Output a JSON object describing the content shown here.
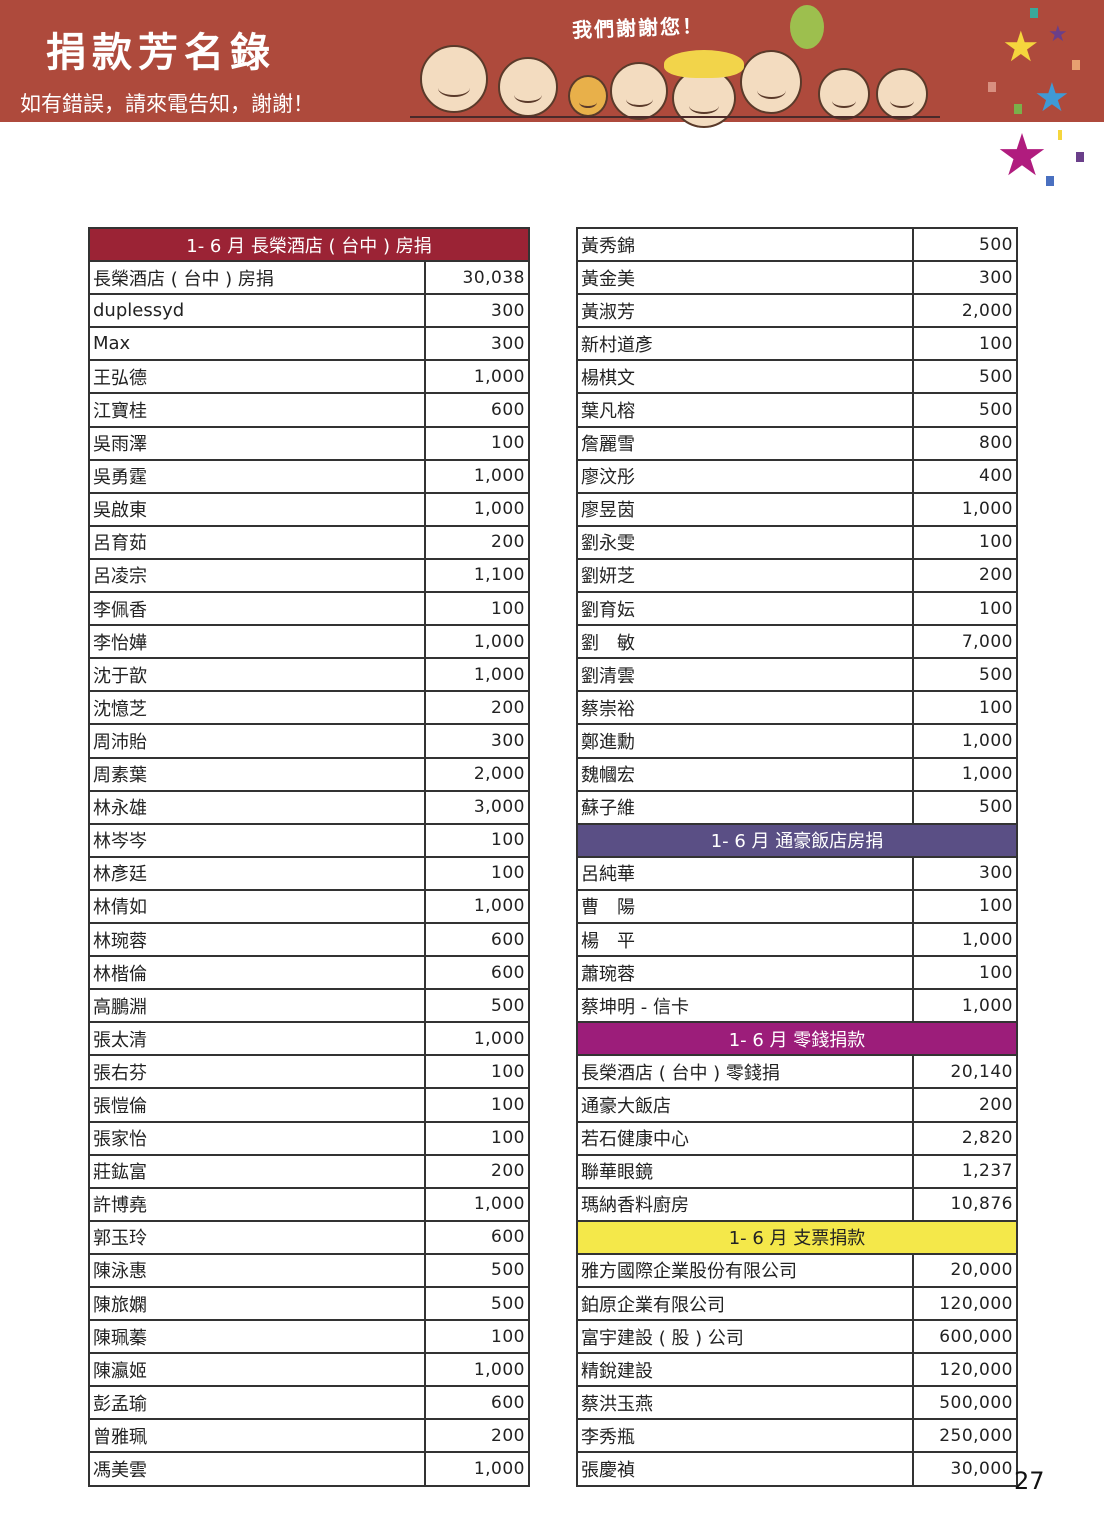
{
  "header": {
    "title": "捐款芳名錄",
    "subtitle": "如有錯誤，請來電告知，謝謝！",
    "thanks": "我們謝謝您！",
    "colors": {
      "banner": "#ae4a3c"
    }
  },
  "left_table": [
    {
      "type": "section",
      "label": "1- 6 月 長榮酒店 ( 台中 ) 房捐",
      "color": "#9b2335"
    },
    {
      "name": "長榮酒店 ( 台中 ) 房捐",
      "amount": "30,038"
    },
    {
      "name": "duplessyd",
      "amount": "300"
    },
    {
      "name": "Max",
      "amount": "300"
    },
    {
      "name": "王弘德",
      "amount": "1,000"
    },
    {
      "name": "江寶桂",
      "amount": "600"
    },
    {
      "name": "吳雨澤",
      "amount": "100"
    },
    {
      "name": "吳勇霆",
      "amount": "1,000"
    },
    {
      "name": "吳啟東",
      "amount": "1,000"
    },
    {
      "name": "呂育茹",
      "amount": "200"
    },
    {
      "name": "呂凌宗",
      "amount": "1,100"
    },
    {
      "name": "李佩香",
      "amount": "100"
    },
    {
      "name": "李怡嬅",
      "amount": "1,000"
    },
    {
      "name": "沈于歆",
      "amount": "1,000"
    },
    {
      "name": "沈憶芝",
      "amount": "200"
    },
    {
      "name": "周沛貽",
      "amount": "300"
    },
    {
      "name": "周素葉",
      "amount": "2,000"
    },
    {
      "name": "林永雄",
      "amount": "3,000"
    },
    {
      "name": "林岑岑",
      "amount": "100"
    },
    {
      "name": "林彥廷",
      "amount": "100"
    },
    {
      "name": "林倩如",
      "amount": "1,000"
    },
    {
      "name": "林琬蓉",
      "amount": "600"
    },
    {
      "name": "林楷倫",
      "amount": "600"
    },
    {
      "name": "高鵬淵",
      "amount": "500"
    },
    {
      "name": "張太清",
      "amount": "1,000"
    },
    {
      "name": "張右芬",
      "amount": "100"
    },
    {
      "name": "張愷倫",
      "amount": "100"
    },
    {
      "name": "張家怡",
      "amount": "100"
    },
    {
      "name": "莊鈜富",
      "amount": "200"
    },
    {
      "name": "許博堯",
      "amount": "1,000"
    },
    {
      "name": "郭玉玲",
      "amount": "600"
    },
    {
      "name": "陳泳惠",
      "amount": "500"
    },
    {
      "name": "陳旅嫻",
      "amount": "500"
    },
    {
      "name": "陳珮蓁",
      "amount": "100"
    },
    {
      "name": "陳瀛姬",
      "amount": "1,000"
    },
    {
      "name": "彭孟瑜",
      "amount": "600"
    },
    {
      "name": "曾雅珮",
      "amount": "200"
    },
    {
      "name": "馮美雲",
      "amount": "1,000"
    }
  ],
  "right_table": [
    {
      "name": "黃秀錦",
      "amount": "500"
    },
    {
      "name": "黃金美",
      "amount": "300"
    },
    {
      "name": "黃淑芳",
      "amount": "2,000"
    },
    {
      "name": "新村道彥",
      "amount": "100"
    },
    {
      "name": "楊棋文",
      "amount": "500"
    },
    {
      "name": "葉凡榕",
      "amount": "500"
    },
    {
      "name": "詹麗雪",
      "amount": "800"
    },
    {
      "name": "廖汶彤",
      "amount": "400"
    },
    {
      "name": "廖昱茵",
      "amount": "1,000"
    },
    {
      "name": "劉永雯",
      "amount": "100"
    },
    {
      "name": "劉妍芝",
      "amount": "200"
    },
    {
      "name": "劉育妘",
      "amount": "100"
    },
    {
      "name": "劉　敏",
      "amount": "7,000"
    },
    {
      "name": "劉清雲",
      "amount": "500"
    },
    {
      "name": "蔡崇裕",
      "amount": "100"
    },
    {
      "name": "鄭進勳",
      "amount": "1,000"
    },
    {
      "name": "魏幗宏",
      "amount": "1,000"
    },
    {
      "name": "蘇子維",
      "amount": "500"
    },
    {
      "type": "section",
      "label": "1- 6 月 通豪飯店房捐",
      "color": "#5a4f85"
    },
    {
      "name": "呂純華",
      "amount": "300"
    },
    {
      "name": "曹　陽",
      "amount": "100"
    },
    {
      "name": "楊　平",
      "amount": "1,000"
    },
    {
      "name": "蕭琬蓉",
      "amount": "100"
    },
    {
      "name": "蔡坤明 - 信卡",
      "amount": "1,000"
    },
    {
      "type": "section",
      "label": "1- 6 月 零錢捐款",
      "color": "#9c1d7a"
    },
    {
      "name": "長榮酒店 ( 台中 ) 零錢捐",
      "amount": "20,140"
    },
    {
      "name": "通豪大飯店",
      "amount": "200"
    },
    {
      "name": "若石健康中心",
      "amount": "2,820"
    },
    {
      "name": "聯華眼鏡",
      "amount": "1,237"
    },
    {
      "name": "瑪納香料廚房",
      "amount": "10,876"
    },
    {
      "type": "section",
      "label": "1- 6 月 支票捐款",
      "color": "#f4e84a",
      "text_color": "#222"
    },
    {
      "name": "雅方國際企業股份有限公司",
      "amount": "20,000"
    },
    {
      "name": "鉑原企業有限公司",
      "amount": "120,000"
    },
    {
      "name": "富宇建設 ( 股 ) 公司",
      "amount": "600,000"
    },
    {
      "name": "精銳建設",
      "amount": "120,000"
    },
    {
      "name": "蔡洪玉燕",
      "amount": "500,000"
    },
    {
      "name": "李秀瓶",
      "amount": "250,000"
    },
    {
      "name": "張慶禎",
      "amount": "30,000"
    }
  ],
  "page_number": "27"
}
